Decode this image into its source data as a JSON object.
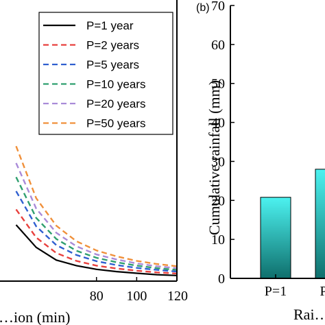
{
  "chart_data": [
    {
      "panel": "",
      "type": "line",
      "xlabel": "…ion (min)",
      "ylabel": "",
      "xlim": [
        32,
        120
      ],
      "ylim": [
        0,
        1
      ],
      "x_ticks": [
        80,
        100,
        120
      ],
      "legend_position": "top-right",
      "x": [
        40,
        50,
        60,
        70,
        80,
        90,
        100,
        110,
        120
      ],
      "series": [
        {
          "name": "P=1 year",
          "color": "#000000",
          "dash": "solid",
          "values": [
            0.2,
            0.12,
            0.075,
            0.055,
            0.042,
            0.034,
            0.028,
            0.023,
            0.02
          ]
        },
        {
          "name": "P=2 years",
          "color": "#e8403d",
          "dash": "dashed",
          "values": [
            0.255,
            0.155,
            0.1,
            0.072,
            0.055,
            0.045,
            0.037,
            0.031,
            0.027
          ]
        },
        {
          "name": "P=5 years",
          "color": "#2f5fd0",
          "dash": "dashed",
          "values": [
            0.32,
            0.195,
            0.128,
            0.093,
            0.071,
            0.057,
            0.047,
            0.04,
            0.034
          ]
        },
        {
          "name": "P=10 years",
          "color": "#2f9f6f",
          "dash": "dashed",
          "values": [
            0.37,
            0.225,
            0.15,
            0.108,
            0.083,
            0.067,
            0.055,
            0.046,
            0.04
          ]
        },
        {
          "name": "P=20 years",
          "color": "#a98ad8",
          "dash": "dashed",
          "values": [
            0.42,
            0.258,
            0.172,
            0.124,
            0.095,
            0.077,
            0.063,
            0.053,
            0.046
          ]
        },
        {
          "name": "P=50 years",
          "color": "#f0903a",
          "dash": "dashed",
          "values": [
            0.48,
            0.295,
            0.197,
            0.142,
            0.109,
            0.088,
            0.072,
            0.061,
            0.053
          ]
        }
      ]
    },
    {
      "panel": "(b)",
      "type": "bar",
      "xlabel": "Rai…",
      "ylabel": "Cumulative rainfall (mm)",
      "ylim": [
        0,
        70
      ],
      "y_ticks": [
        0,
        10,
        20,
        30,
        40,
        50,
        60,
        70
      ],
      "categories": [
        "P=1",
        "P…"
      ],
      "values": [
        20.8,
        28.0
      ],
      "bar_color_top": "#4cf2f0",
      "bar_color_bottom": "#0f6f6c"
    }
  ]
}
